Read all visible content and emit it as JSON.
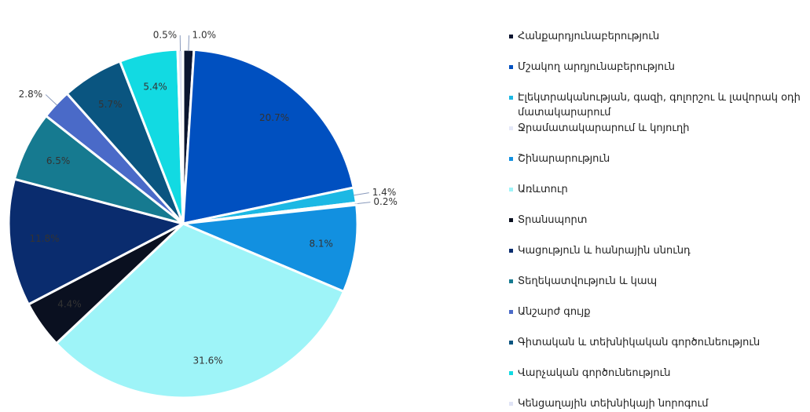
{
  "chart_data": {
    "type": "pie",
    "categories": [
      "Հանքարդյունաբերություն",
      "Մշակող արդյունաբերություն",
      "Էլեկտրականության, գազի, գոլորշու և լավորակ օդի մատակարարում",
      "Ջրամատակարարում և կոյուղի",
      "Շինարարություն",
      "Առևտուր",
      "Տրանսպորտ",
      "Կացություն և հանրային սնունդ",
      "Տեղեկատվություն և կապ",
      "Անշարժ գույք",
      "Գիտական և տեխնիկական գործունեություն",
      "Վարչական գործունեություն",
      "Կենցաղային տեխնիկայի նորոգում"
    ],
    "values": [
      1.0,
      20.7,
      1.4,
      0.2,
      8.1,
      31.6,
      4.4,
      11.8,
      6.5,
      2.8,
      5.7,
      5.4,
      0.5
    ],
    "value_labels": [
      "1.0%",
      "20.7%",
      "1.4%",
      "0.2%",
      "8.1%",
      "31.6%",
      "4.4%",
      "11.8%",
      "6.5%",
      "2.8%",
      "5.7%",
      "5.4%",
      "0.5%"
    ],
    "colors": [
      "#0b1530",
      "#0050c0",
      "#1cb8e4",
      "#e4e8f8",
      "#1290e0",
      "#9ef4f8",
      "#0a1020",
      "#0a2c6e",
      "#167a90",
      "#4a6ac8",
      "#0a5580",
      "#12dae2",
      "#dfe3f5"
    ]
  }
}
